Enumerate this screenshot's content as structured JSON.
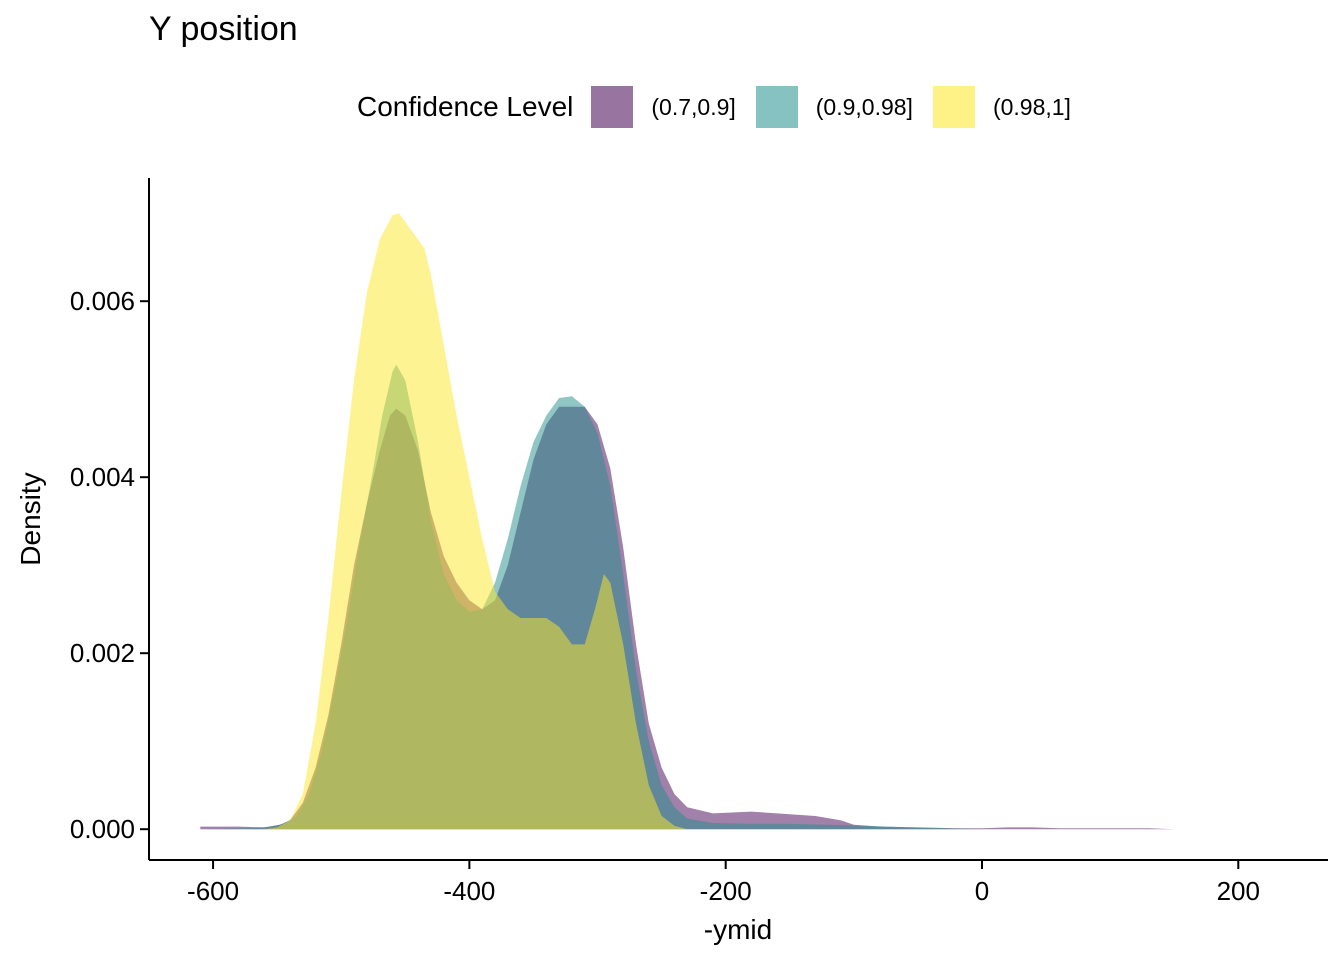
{
  "chart_data": {
    "type": "area",
    "title": "Y position",
    "xlabel": "-ymid",
    "ylabel": "Density",
    "xlim": [
      -650,
      270
    ],
    "ylim": [
      -0.00035,
      0.0074
    ],
    "xticks": [
      -600,
      -400,
      -200,
      0,
      200
    ],
    "yticks": [
      0.0,
      0.002,
      0.004,
      0.006
    ],
    "xtick_labels": [
      "-600",
      "-400",
      "-200",
      "0",
      "200"
    ],
    "ytick_labels": [
      "0.000",
      "0.002",
      "0.004",
      "0.006"
    ],
    "grid": false,
    "legend_position": "top",
    "legend": {
      "title": "Confidence Level",
      "entries": [
        "(0.7,0.9]",
        "(0.9,0.98]",
        "(0.98,1]"
      ]
    },
    "series": [
      {
        "name": "(0.7,0.9]",
        "color": "#440154",
        "points": [
          [
            -610,
            3e-05
          ],
          [
            -580,
            3e-05
          ],
          [
            -560,
            2e-05
          ],
          [
            -548,
            5e-05
          ],
          [
            -540,
            0.0001
          ],
          [
            -530,
            0.0003
          ],
          [
            -520,
            0.0007
          ],
          [
            -510,
            0.0013
          ],
          [
            -500,
            0.0021
          ],
          [
            -490,
            0.003
          ],
          [
            -480,
            0.0037
          ],
          [
            -470,
            0.0043
          ],
          [
            -462,
            0.0047
          ],
          [
            -457,
            0.00478
          ],
          [
            -450,
            0.0047
          ],
          [
            -440,
            0.0043
          ],
          [
            -430,
            0.0036
          ],
          [
            -420,
            0.0031
          ],
          [
            -410,
            0.0028
          ],
          [
            -400,
            0.0026
          ],
          [
            -390,
            0.0025
          ],
          [
            -380,
            0.0026
          ],
          [
            -370,
            0.003
          ],
          [
            -360,
            0.0036
          ],
          [
            -350,
            0.0042
          ],
          [
            -340,
            0.0046
          ],
          [
            -330,
            0.0048
          ],
          [
            -320,
            0.0048
          ],
          [
            -310,
            0.0048
          ],
          [
            -300,
            0.0046
          ],
          [
            -290,
            0.0041
          ],
          [
            -280,
            0.0032
          ],
          [
            -270,
            0.0021
          ],
          [
            -260,
            0.0012
          ],
          [
            -250,
            0.0007
          ],
          [
            -240,
            0.0004
          ],
          [
            -230,
            0.00025
          ],
          [
            -210,
            0.00018
          ],
          [
            -180,
            0.0002
          ],
          [
            -160,
            0.00018
          ],
          [
            -130,
            0.00015
          ],
          [
            -110,
            0.0001
          ],
          [
            -100,
            5e-05
          ],
          [
            -80,
            3e-05
          ],
          [
            -50,
            2e-05
          ],
          [
            -20,
            1e-05
          ],
          [
            0,
            1e-05
          ],
          [
            20,
            2e-05
          ],
          [
            40,
            2e-05
          ],
          [
            60,
            1e-05
          ],
          [
            90,
            1e-05
          ],
          [
            130,
            1e-05
          ],
          [
            150,
            0.0
          ],
          [
            220,
            0.0
          ],
          [
            230,
            0.0
          ]
        ]
      },
      {
        "name": "(0.9,0.98]",
        "color": "#21908C",
        "points": [
          [
            -610,
            0.0
          ],
          [
            -570,
            1e-05
          ],
          [
            -555,
            3e-05
          ],
          [
            -545,
            6e-05
          ],
          [
            -535,
            0.00015
          ],
          [
            -525,
            0.0004
          ],
          [
            -515,
            0.0009
          ],
          [
            -505,
            0.0016
          ],
          [
            -495,
            0.0024
          ],
          [
            -485,
            0.0033
          ],
          [
            -475,
            0.0041
          ],
          [
            -468,
            0.0047
          ],
          [
            -460,
            0.0052
          ],
          [
            -457,
            0.00528
          ],
          [
            -450,
            0.0051
          ],
          [
            -440,
            0.0044
          ],
          [
            -430,
            0.0035
          ],
          [
            -420,
            0.0029
          ],
          [
            -410,
            0.0026
          ],
          [
            -400,
            0.00247
          ],
          [
            -390,
            0.0025
          ],
          [
            -380,
            0.0028
          ],
          [
            -370,
            0.0033
          ],
          [
            -360,
            0.0039
          ],
          [
            -350,
            0.0044
          ],
          [
            -340,
            0.0047
          ],
          [
            -330,
            0.0049
          ],
          [
            -320,
            0.00492
          ],
          [
            -310,
            0.0048
          ],
          [
            -300,
            0.0045
          ],
          [
            -290,
            0.0039
          ],
          [
            -280,
            0.0029
          ],
          [
            -270,
            0.0018
          ],
          [
            -260,
            0.001
          ],
          [
            -250,
            0.0005
          ],
          [
            -240,
            0.00025
          ],
          [
            -230,
            0.00012
          ],
          [
            -210,
            7e-05
          ],
          [
            -180,
            6e-05
          ],
          [
            -150,
            6e-05
          ],
          [
            -120,
            5e-05
          ],
          [
            -90,
            4e-05
          ],
          [
            -60,
            2e-05
          ],
          [
            -30,
            1e-05
          ],
          [
            0,
            0.0
          ],
          [
            50,
            0.0
          ]
        ]
      },
      {
        "name": "(0.98,1]",
        "color": "#FDE725",
        "points": [
          [
            -560,
            0.0
          ],
          [
            -550,
            2e-05
          ],
          [
            -540,
            0.0001
          ],
          [
            -530,
            0.0004
          ],
          [
            -520,
            0.0012
          ],
          [
            -510,
            0.0024
          ],
          [
            -500,
            0.0038
          ],
          [
            -490,
            0.0051
          ],
          [
            -480,
            0.0061
          ],
          [
            -470,
            0.0067
          ],
          [
            -460,
            0.00698
          ],
          [
            -455,
            0.007
          ],
          [
            -450,
            0.0069
          ],
          [
            -440,
            0.0067
          ],
          [
            -435,
            0.0066
          ],
          [
            -430,
            0.0063
          ],
          [
            -420,
            0.0055
          ],
          [
            -410,
            0.0047
          ],
          [
            -400,
            0.004
          ],
          [
            -390,
            0.0033
          ],
          [
            -380,
            0.0027
          ],
          [
            -370,
            0.0025
          ],
          [
            -360,
            0.0024
          ],
          [
            -350,
            0.0024
          ],
          [
            -340,
            0.0024
          ],
          [
            -330,
            0.0023
          ],
          [
            -320,
            0.0021
          ],
          [
            -310,
            0.0021
          ],
          [
            -302,
            0.0025
          ],
          [
            -295,
            0.0029
          ],
          [
            -290,
            0.0028
          ],
          [
            -280,
            0.0021
          ],
          [
            -270,
            0.0012
          ],
          [
            -260,
            0.0005
          ],
          [
            -250,
            0.00015
          ],
          [
            -240,
            4e-05
          ],
          [
            -230,
            0.0
          ]
        ]
      }
    ]
  }
}
